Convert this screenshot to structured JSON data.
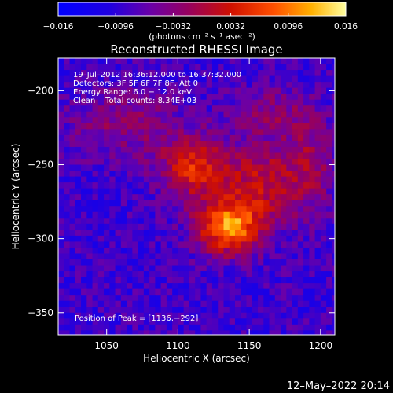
{
  "chart_data": {
    "type": "heatmap",
    "title": "Reconstructed RHESSI Image",
    "xlabel": "Heliocentric X (arcsec)",
    "ylabel": "Heliocentric Y (arcsec)",
    "xlim": [
      1016,
      1210
    ],
    "ylim": [
      -365,
      -178
    ],
    "x_ticks": [
      1050,
      1100,
      1150,
      1200
    ],
    "y_ticks": [
      -200,
      -250,
      -300,
      -350
    ],
    "x_tick_labels": [
      "1050",
      "1100",
      "1150",
      "1200"
    ],
    "y_tick_labels": [
      "−200",
      "−250",
      "−300",
      "−350"
    ],
    "colorbar": {
      "min": -0.016,
      "max": 0.016,
      "ticks": [
        -0.016,
        -0.0096,
        -0.0032,
        0.0032,
        0.0096,
        0.016
      ],
      "tick_labels": [
        "−0.016",
        "−0.0096",
        "−0.0032",
        "0.0032",
        "0.0096",
        "0.016"
      ],
      "units_label": "(photons cm⁻² s⁻¹ asec⁻²)"
    },
    "annotations": [
      "19–Jul–2012 16:36:12.000 to 16:37:32.000",
      "Detectors: 3F 5F 6F 7F 8F, Att 0",
      "Energy Range: 6.0 − 12.0 keV",
      "Clean    Total counts: 8.34E+03"
    ],
    "peak_label": "Position of Peak = [1136,−292]",
    "peak": [
      1136,
      -292
    ],
    "sources": [
      {
        "x": 1136,
        "y": -292,
        "amp": 0.0185,
        "sx": 16,
        "sy": 13
      },
      {
        "x": 1112,
        "y": -252,
        "amp": 0.0128,
        "sx": 17,
        "sy": 15
      },
      {
        "x": 1158,
        "y": -262,
        "amp": 0.0095,
        "sx": 17,
        "sy": 19
      },
      {
        "x": 1192,
        "y": -252,
        "amp": 0.0072,
        "sx": 13,
        "sy": 24
      },
      {
        "x": 1062,
        "y": -222,
        "amp": 0.0058,
        "sx": 28,
        "sy": 17
      },
      {
        "x": 1165,
        "y": -214,
        "amp": 0.0052,
        "sx": 20,
        "sy": 12
      }
    ],
    "background_level": -0.0086
  },
  "footer_timestamp": "12–May–2022 20:14"
}
